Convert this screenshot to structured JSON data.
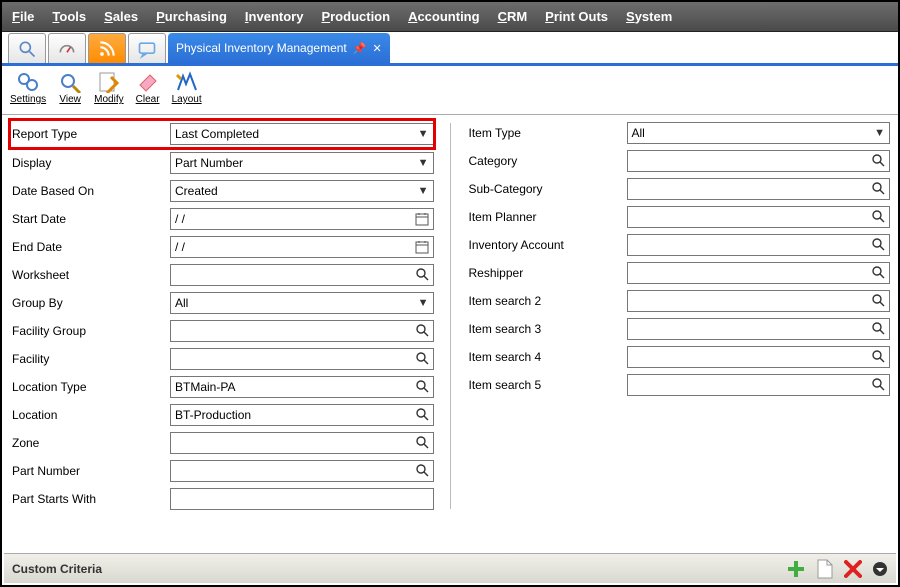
{
  "menubar": {
    "items": [
      {
        "accel": "F",
        "rest": "ile"
      },
      {
        "accel": "T",
        "rest": "ools"
      },
      {
        "accel": "S",
        "rest": "ales"
      },
      {
        "accel": "P",
        "rest": "urchasing"
      },
      {
        "accel": "I",
        "rest": "nventory"
      },
      {
        "accel": "P",
        "rest": "roduction"
      },
      {
        "accel": "A",
        "rest": "ccounting"
      },
      {
        "accel": "C",
        "rest": "RM"
      },
      {
        "accel": "P",
        "rest": "rint Outs"
      },
      {
        "accel": "S",
        "rest": "ystem"
      }
    ]
  },
  "tab": {
    "title": "Physical Inventory Management"
  },
  "toolbar": {
    "items": [
      {
        "label": "Settings",
        "name": "settings-button"
      },
      {
        "label": "View",
        "name": "view-button"
      },
      {
        "label": "Modify",
        "name": "modify-button"
      },
      {
        "label": "Clear",
        "name": "clear-button"
      },
      {
        "label": "Layout",
        "name": "layout-button"
      }
    ]
  },
  "form": {
    "left": [
      {
        "label": "Report Type",
        "value": "Last Completed",
        "type": "select",
        "highlight": true,
        "name": "report-type-field"
      },
      {
        "label": "Display",
        "value": "Part Number",
        "type": "select",
        "name": "display-field"
      },
      {
        "label": "Date Based On",
        "value": "Created",
        "type": "select",
        "name": "date-based-on-field"
      },
      {
        "label": "Start Date",
        "value": "  /  /",
        "type": "date",
        "name": "start-date-field"
      },
      {
        "label": "End Date",
        "value": "  /  /",
        "type": "date",
        "name": "end-date-field"
      },
      {
        "label": "Worksheet",
        "value": "",
        "type": "lookup",
        "name": "worksheet-field"
      },
      {
        "label": "Group By",
        "value": "All",
        "type": "select",
        "name": "group-by-field"
      },
      {
        "label": "Facility Group",
        "value": "",
        "type": "lookup",
        "name": "facility-group-field"
      },
      {
        "label": "Facility",
        "value": "",
        "type": "lookup",
        "name": "facility-field"
      },
      {
        "label": "Location Type",
        "value": "BTMain-PA",
        "type": "lookup",
        "name": "location-type-field"
      },
      {
        "label": "Location",
        "value": "BT-Production",
        "type": "lookup",
        "name": "location-field"
      },
      {
        "label": "Zone",
        "value": "",
        "type": "lookup",
        "name": "zone-field"
      },
      {
        "label": "Part Number",
        "value": "",
        "type": "lookup",
        "name": "part-number-field"
      },
      {
        "label": "Part Starts With",
        "value": "",
        "type": "text",
        "name": "part-starts-with-field"
      }
    ],
    "right": [
      {
        "label": "Item Type",
        "value": "All",
        "type": "select",
        "name": "item-type-field"
      },
      {
        "label": "Category",
        "value": "",
        "type": "lookup",
        "name": "category-field"
      },
      {
        "label": "Sub-Category",
        "value": "",
        "type": "lookup",
        "name": "sub-category-field"
      },
      {
        "label": "Item Planner",
        "value": "",
        "type": "lookup",
        "name": "item-planner-field"
      },
      {
        "label": "Inventory Account",
        "value": "",
        "type": "lookup",
        "name": "inventory-account-field"
      },
      {
        "label": "Reshipper",
        "value": "",
        "type": "lookup",
        "name": "reshipper-field"
      },
      {
        "label": "Item search 2",
        "value": "",
        "type": "lookup",
        "name": "item-search-2-field"
      },
      {
        "label": "Item search 3",
        "value": "",
        "type": "lookup",
        "name": "item-search-3-field"
      },
      {
        "label": "Item search 4",
        "value": "",
        "type": "lookup",
        "name": "item-search-4-field"
      },
      {
        "label": "Item search 5",
        "value": "",
        "type": "lookup",
        "name": "item-search-5-field"
      }
    ]
  },
  "footer": {
    "title": "Custom Criteria"
  },
  "glyph": {
    "select": "▼",
    "date": "📅",
    "lookup": "🔎"
  },
  "colors": {
    "menubar_grad_top": "#6d6d6d",
    "menubar_grad_bot": "#4a4a4a",
    "tab_grad_top": "#3a8ae8",
    "tab_grad_bot": "#2b6fd6",
    "tabstrip_border": "#2b6fd6",
    "highlight_border": "#e30000",
    "footer_grad_top": "#f0efe9",
    "footer_grad_bot": "#d9d8d0",
    "field_border": "#777"
  }
}
